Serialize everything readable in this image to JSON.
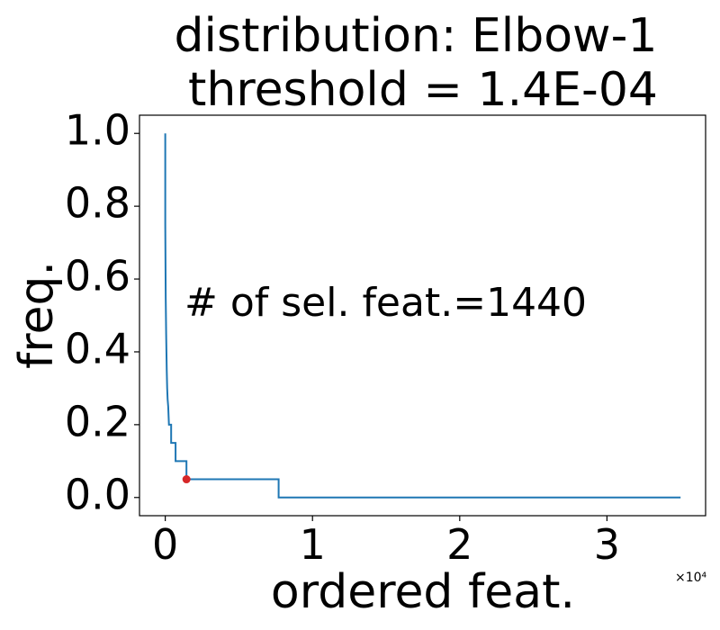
{
  "chart_data": {
    "type": "line",
    "title": "distribution: Elbow-1\nthreshold = 1.4E-04",
    "title_lines": [
      "distribution: Elbow-1",
      "threshold = 1.4E-04"
    ],
    "xlabel": "ordered feat.",
    "ylabel": "freq.",
    "x_offset_label": "×10⁴",
    "annotation": "# of sel. feat.=1440",
    "xlim": [
      -1750,
      36700
    ],
    "ylim": [
      -0.05,
      1.05
    ],
    "x_ticks": [
      0,
      10000,
      20000,
      30000
    ],
    "x_tick_labels": [
      "0",
      "1",
      "2",
      "3"
    ],
    "y_ticks": [
      0.0,
      0.2,
      0.4,
      0.6,
      0.8,
      1.0
    ],
    "y_tick_labels": [
      "0.0",
      "0.2",
      "0.4",
      "0.6",
      "0.8",
      "1.0"
    ],
    "grid": false,
    "legend": "none",
    "colors": {
      "line": "#1f77b4",
      "marker": "#d62728",
      "axes": "#000000",
      "background": "#ffffff"
    },
    "series": [
      {
        "x": [
          0,
          0,
          30,
          60,
          80,
          100,
          130,
          160,
          200,
          250,
          300,
          400,
          400,
          700,
          700,
          1440,
          1440,
          7700,
          7700,
          35000
        ],
        "y": [
          1.0,
          0.75,
          0.55,
          0.45,
          0.4,
          0.35,
          0.3,
          0.27,
          0.25,
          0.2,
          0.2,
          0.2,
          0.15,
          0.15,
          0.1,
          0.1,
          0.05,
          0.05,
          0.0,
          0.0
        ]
      }
    ],
    "highlight_point": {
      "x": 1440,
      "y": 0.05
    }
  }
}
